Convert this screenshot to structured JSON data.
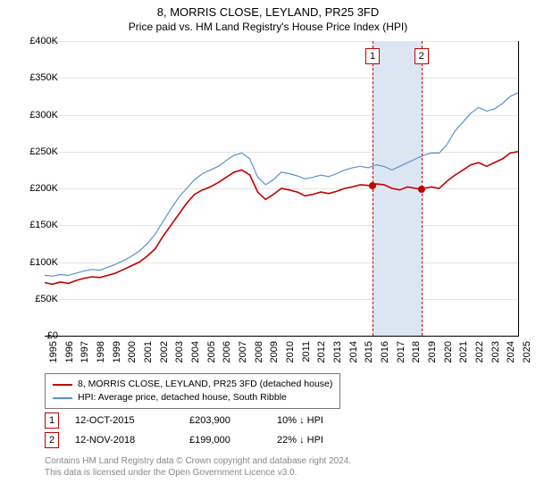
{
  "title": "8, MORRIS CLOSE, LEYLAND, PR25 3FD",
  "subtitle": "Price paid vs. HM Land Registry's House Price Index (HPI)",
  "chart": {
    "type": "line",
    "background_color": "#ffffff",
    "grid_color": "#e5e5e5",
    "axis_color": "#000000",
    "label_fontsize": 11,
    "y_axis": {
      "min": 0,
      "max": 400000,
      "step": 50000,
      "tick_labels": [
        "£0",
        "£50K",
        "£100K",
        "£150K",
        "£200K",
        "£250K",
        "£300K",
        "£350K",
        "£400K"
      ]
    },
    "x_axis": {
      "min": 1995,
      "max": 2025,
      "tick_labels": [
        "1995",
        "1996",
        "1997",
        "1998",
        "1999",
        "2000",
        "2001",
        "2002",
        "2003",
        "2004",
        "2005",
        "2006",
        "2007",
        "2008",
        "2009",
        "2010",
        "2011",
        "2012",
        "2013",
        "2014",
        "2015",
        "2016",
        "2017",
        "2018",
        "2019",
        "2020",
        "2021",
        "2022",
        "2023",
        "2024",
        "2025"
      ]
    },
    "shaded_region": {
      "x_start": 2015.78,
      "x_end": 2018.87,
      "color": "#dce6f2"
    },
    "event_lines": {
      "color": "#c00000",
      "dash": "4,3",
      "box_border": "#c00000",
      "box_bg": "#ffffff",
      "events": [
        {
          "num": "1",
          "x": 2015.78,
          "marker_y": 203900
        },
        {
          "num": "2",
          "x": 2018.87,
          "marker_y": 199000
        }
      ]
    },
    "series": [
      {
        "name": "property",
        "label": "8, MORRIS CLOSE, LEYLAND, PR25 3FD (detached house)",
        "color": "#c00000",
        "line_width": 1.6,
        "points": [
          [
            1995,
            72000
          ],
          [
            1995.5,
            70000
          ],
          [
            1996,
            73000
          ],
          [
            1996.5,
            71000
          ],
          [
            1997,
            75000
          ],
          [
            1997.5,
            78000
          ],
          [
            1998,
            80000
          ],
          [
            1998.5,
            79000
          ],
          [
            1999,
            82000
          ],
          [
            1999.5,
            85000
          ],
          [
            2000,
            90000
          ],
          [
            2000.5,
            95000
          ],
          [
            2001,
            100000
          ],
          [
            2001.5,
            108000
          ],
          [
            2002,
            118000
          ],
          [
            2002.5,
            135000
          ],
          [
            2003,
            150000
          ],
          [
            2003.5,
            165000
          ],
          [
            2004,
            180000
          ],
          [
            2004.5,
            192000
          ],
          [
            2005,
            198000
          ],
          [
            2005.5,
            202000
          ],
          [
            2006,
            208000
          ],
          [
            2006.5,
            215000
          ],
          [
            2007,
            222000
          ],
          [
            2007.5,
            225000
          ],
          [
            2008,
            218000
          ],
          [
            2008.5,
            195000
          ],
          [
            2009,
            185000
          ],
          [
            2009.5,
            192000
          ],
          [
            2010,
            200000
          ],
          [
            2010.5,
            198000
          ],
          [
            2011,
            195000
          ],
          [
            2011.5,
            190000
          ],
          [
            2012,
            192000
          ],
          [
            2012.5,
            195000
          ],
          [
            2013,
            193000
          ],
          [
            2013.5,
            196000
          ],
          [
            2014,
            200000
          ],
          [
            2014.5,
            202000
          ],
          [
            2015,
            205000
          ],
          [
            2015.5,
            204000
          ],
          [
            2015.78,
            203900
          ],
          [
            2016,
            206000
          ],
          [
            2016.5,
            205000
          ],
          [
            2017,
            200000
          ],
          [
            2017.5,
            198000
          ],
          [
            2018,
            202000
          ],
          [
            2018.5,
            200000
          ],
          [
            2018.87,
            199000
          ],
          [
            2019,
            200000
          ],
          [
            2019.5,
            202000
          ],
          [
            2020,
            200000
          ],
          [
            2020.5,
            210000
          ],
          [
            2021,
            218000
          ],
          [
            2021.5,
            225000
          ],
          [
            2022,
            232000
          ],
          [
            2022.5,
            235000
          ],
          [
            2023,
            230000
          ],
          [
            2023.5,
            235000
          ],
          [
            2024,
            240000
          ],
          [
            2024.5,
            248000
          ],
          [
            2025,
            250000
          ]
        ]
      },
      {
        "name": "hpi",
        "label": "HPI: Average price, detached house, South Ribble",
        "color": "#5b8fd6",
        "line_width": 1.2,
        "points": [
          [
            1995,
            82000
          ],
          [
            1995.5,
            81000
          ],
          [
            1996,
            83000
          ],
          [
            1996.5,
            82000
          ],
          [
            1997,
            85000
          ],
          [
            1997.5,
            88000
          ],
          [
            1998,
            90000
          ],
          [
            1998.5,
            89000
          ],
          [
            1999,
            93000
          ],
          [
            1999.5,
            97000
          ],
          [
            2000,
            102000
          ],
          [
            2000.5,
            108000
          ],
          [
            2001,
            115000
          ],
          [
            2001.5,
            125000
          ],
          [
            2002,
            138000
          ],
          [
            2002.5,
            155000
          ],
          [
            2003,
            172000
          ],
          [
            2003.5,
            188000
          ],
          [
            2004,
            200000
          ],
          [
            2004.5,
            212000
          ],
          [
            2005,
            220000
          ],
          [
            2005.5,
            225000
          ],
          [
            2006,
            230000
          ],
          [
            2006.5,
            238000
          ],
          [
            2007,
            245000
          ],
          [
            2007.5,
            248000
          ],
          [
            2008,
            240000
          ],
          [
            2008.5,
            215000
          ],
          [
            2009,
            205000
          ],
          [
            2009.5,
            212000
          ],
          [
            2010,
            222000
          ],
          [
            2010.5,
            220000
          ],
          [
            2011,
            217000
          ],
          [
            2011.5,
            213000
          ],
          [
            2012,
            215000
          ],
          [
            2012.5,
            218000
          ],
          [
            2013,
            216000
          ],
          [
            2013.5,
            220000
          ],
          [
            2014,
            225000
          ],
          [
            2014.5,
            228000
          ],
          [
            2015,
            230000
          ],
          [
            2015.5,
            228000
          ],
          [
            2016,
            232000
          ],
          [
            2016.5,
            230000
          ],
          [
            2017,
            225000
          ],
          [
            2017.5,
            230000
          ],
          [
            2018,
            235000
          ],
          [
            2018.5,
            240000
          ],
          [
            2019,
            245000
          ],
          [
            2019.5,
            248000
          ],
          [
            2020,
            248000
          ],
          [
            2020.5,
            260000
          ],
          [
            2021,
            278000
          ],
          [
            2021.5,
            290000
          ],
          [
            2022,
            302000
          ],
          [
            2022.5,
            310000
          ],
          [
            2023,
            305000
          ],
          [
            2023.5,
            308000
          ],
          [
            2024,
            315000
          ],
          [
            2024.5,
            325000
          ],
          [
            2025,
            330000
          ]
        ]
      }
    ]
  },
  "legend": {
    "border_color": "#777777",
    "items": [
      {
        "color": "#c00000",
        "label": "8, MORRIS CLOSE, LEYLAND, PR25 3FD (detached house)"
      },
      {
        "color": "#5b8fd6",
        "label": "HPI: Average price, detached house, South Ribble"
      }
    ]
  },
  "events_table": [
    {
      "num": "1",
      "date": "12-OCT-2015",
      "price": "£203,900",
      "diff": "10% ↓ HPI"
    },
    {
      "num": "2",
      "date": "12-NOV-2018",
      "price": "£199,000",
      "diff": "22% ↓ HPI"
    }
  ],
  "attribution": {
    "line1": "Contains HM Land Registry data © Crown copyright and database right 2024.",
    "line2": "This data is licensed under the Open Government Licence v3.0."
  }
}
